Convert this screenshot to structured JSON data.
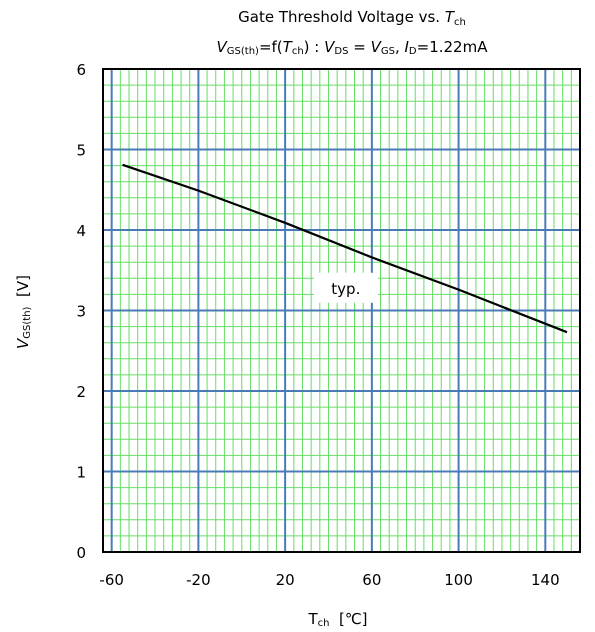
{
  "chart_data": {
    "type": "line",
    "title_line1": {
      "text": "Gate Threshold Voltage vs. ",
      "italic": "T",
      "sub": "ch"
    },
    "title_line2": {
      "v": "V",
      "gs_th": "GS(th)",
      "eq_f": "=f(",
      "t": "T",
      "ch": "ch",
      "colon": ") : ",
      "v2": "V",
      "ds": "DS",
      "eq": " = ",
      "v3": "V",
      "gs": "GS",
      "comma": ", ",
      "i": "I",
      "d": "D",
      "current": "=1.22mA"
    },
    "xlabel": {
      "main": "T",
      "sub": "ch",
      "unit": "  [℃]"
    },
    "ylabel": {
      "main": "V",
      "sub": "GS(th)",
      "unit": "  [V]"
    },
    "xlim": [
      -64,
      156
    ],
    "ylim": [
      0,
      6
    ],
    "x_ticks": [
      "-60",
      "-20",
      "20",
      "60",
      "100",
      "140"
    ],
    "x_tick_values": [
      -60,
      -20,
      20,
      60,
      100,
      140
    ],
    "y_ticks": [
      "0",
      "1",
      "2",
      "3",
      "4",
      "5",
      "6"
    ],
    "y_tick_values": [
      0,
      1,
      2,
      3,
      4,
      5,
      6
    ],
    "grid": true,
    "series": [
      {
        "x": [
          -55,
          -20,
          20,
          60,
          100,
          150
        ],
        "y": [
          4.81,
          4.49,
          4.09,
          3.66,
          3.26,
          2.73
        ]
      }
    ],
    "annotation": {
      "text": "typ.",
      "x": 48,
      "y": 3.27
    },
    "colors": {
      "major_grid": "#4a7bb7",
      "minor_grid": "#66dd66",
      "line": "#000000",
      "frame": "#000000"
    }
  }
}
